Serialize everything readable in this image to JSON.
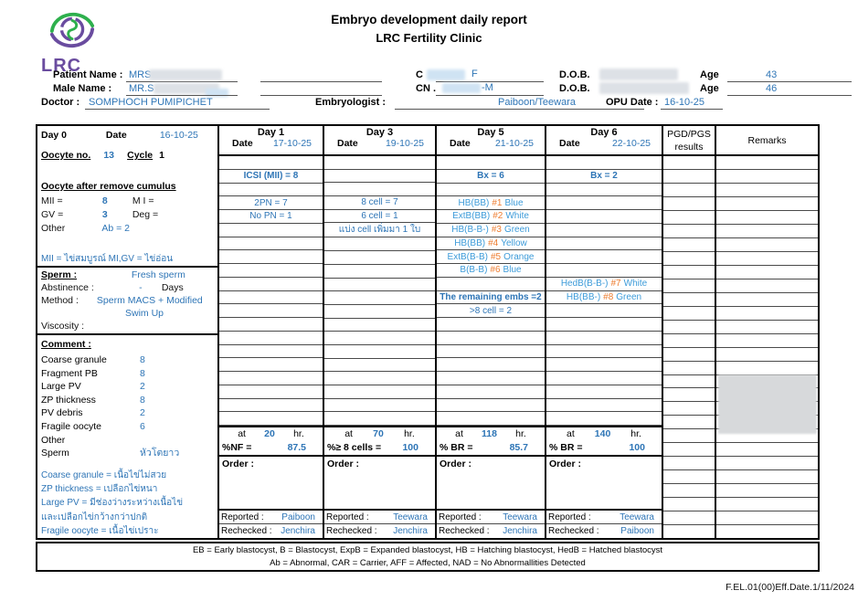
{
  "colors": {
    "data_blue": "#2e75b6",
    "grade_blue": "#3d9bd9",
    "tag_orange": "#ed7d31",
    "logo_purple": "#6a4c9f",
    "logo_green": "#2eb04d"
  },
  "page": {
    "title1": "Embryo development daily report",
    "title2": "LRC Fertility Clinic",
    "logo_text": "LRC",
    "footer_code": "F.EL.01(00)Eff.Date.1/11/2024"
  },
  "header_fields": {
    "patient_name_label": "Patient Name :",
    "patient_name_value": "MRS",
    "male_name_label": "Male Name :",
    "male_name_value": "MR.S",
    "doctor_label": "Doctor :",
    "doctor_value": "SOMPHOCH PUMIPICHET",
    "embryologist_label": "Embryologist :",
    "embryologist_value": "Paiboon/Teewara",
    "cn1_label": "C",
    "cn1_value": "F",
    "cn2_label": "CN .",
    "cn2_value": "-M",
    "dob_label": "D.O.B.",
    "age_label": "Age",
    "age1_value": "43",
    "age2_value": "46",
    "opu_label": "OPU Date :",
    "opu_value": "16-10-25"
  },
  "day0": {
    "section_a": {
      "day_label": "Day 0",
      "date_label": "Date",
      "date_value": "16-10-25",
      "oocyte_no_label": "Oocyte no.",
      "oocyte_no_value": "13",
      "cycle_label": "Cycle",
      "cycle_value": "1",
      "heading": "Oocyte after remove cumulus",
      "mii_label": "MII =",
      "mii_value": "8",
      "mi_label": "M I =",
      "gv_label": "GV =",
      "gv_value": "3",
      "deg_label": "Deg =",
      "other_label": "Other",
      "ab_value": "Ab = 2",
      "note": "MII = ไข่สมบูรณ์ MI,GV = ไข่อ่อน"
    },
    "section_b": {
      "sperm_label": "Sperm :",
      "sperm_value": "Fresh sperm",
      "abstinence_label": "Abstinence :",
      "abstinence_value": "-",
      "days_label": "Days",
      "method_label": "Method :",
      "method_value": "Sperm MACS + Modified",
      "method_value2": "Swim Up",
      "viscosity_label": "Viscosity :"
    },
    "section_c": {
      "heading": "Comment :",
      "items": [
        {
          "label": "Coarse granule",
          "value": "8"
        },
        {
          "label": "Fragment PB",
          "value": "8"
        },
        {
          "label": "Large PV",
          "value": "2"
        },
        {
          "label": "ZP thickness",
          "value": "8"
        },
        {
          "label": "PV debris",
          "value": "2"
        },
        {
          "label": "Fragile oocyte",
          "value": "6"
        },
        {
          "label": "Other",
          "value": ""
        },
        {
          "label": "Sperm",
          "value": "หัวโตยาว"
        }
      ],
      "notes": [
        "Coarse granule  = เนื้อไข่ไม่สวย",
        "ZP thickness = เปลือกไข่หนา",
        "Large PV = มีช่องว่างระหว่างเนื้อไข่",
        "และเปลือกไข่กว้างกว่าปกติ",
        "Fragile oocyte = เนื้อไข่เปราะ"
      ]
    }
  },
  "table_labels": {
    "date": "Date",
    "at": "at",
    "hr": "hr.",
    "order": "Order :",
    "reported": "Reported :",
    "rechecked": "Rechecked :"
  },
  "pgd_header_line1": "PGD/PGS",
  "pgd_header_line2": "results",
  "remarks_header": "Remarks",
  "day_columns": [
    {
      "name": "Day 1",
      "date": "17-10-25",
      "rows": {
        "2": {
          "style": "b",
          "text": "ICSI (MII) = 8"
        },
        "4": {
          "style": "n",
          "text": "2PN = 7"
        },
        "5": {
          "style": "n",
          "text": "No PN = 1"
        }
      },
      "at_hours": "20",
      "pct_label": "%NF =",
      "pct_value": "87.5",
      "reported": "Paiboon",
      "rechecked": "Jenchira"
    },
    {
      "name": "Day 3",
      "date": "19-10-25",
      "rows": {
        "4": {
          "style": "n",
          "text": "8 cell = 7"
        },
        "5": {
          "style": "n",
          "text": "6 cell = 1"
        },
        "6": {
          "style": "n",
          "text": "แบ่ง cell เพิ่มมา 1 ใบ"
        }
      },
      "at_hours": "70",
      "pct_label": "%≥ 8 cells =",
      "pct_value": "100",
      "reported": "Teewara",
      "rechecked": "Jenchira"
    },
    {
      "name": "Day 5",
      "date": "21-10-25",
      "rows": {
        "2": {
          "style": "b",
          "text": "Bx = 6"
        },
        "4": {
          "style": "grade",
          "pre": "HB(BB)",
          "tag": "#1",
          "post": "Blue"
        },
        "5": {
          "style": "grade",
          "pre": "ExtB(BB)",
          "tag": "#2",
          "post": "White"
        },
        "6": {
          "style": "grade",
          "pre": "HB(B-B-)",
          "tag": "#3",
          "post": "Green"
        },
        "7": {
          "style": "grade",
          "pre": "HB(BB)",
          "tag": "#4",
          "post": "Yellow"
        },
        "8": {
          "style": "grade",
          "pre": "ExtB(B-B)",
          "tag": "#5",
          "post": "Orange"
        },
        "9": {
          "style": "grade",
          "pre": "B(B-B)",
          "tag": "#6",
          "post": "Blue"
        },
        "11": {
          "style": "b",
          "text": "The remaining embs =2"
        },
        "12": {
          "style": "n",
          "text": ">8 cell = 2"
        }
      },
      "at_hours": "118",
      "pct_label": "% BR =",
      "pct_value": "85.7",
      "reported": "Teewara",
      "rechecked": "Jenchira"
    },
    {
      "name": "Day 6",
      "date": "22-10-25",
      "rows": {
        "2": {
          "style": "b",
          "text": "Bx = 2"
        },
        "10": {
          "style": "grade",
          "pre": "HedB(B-B-)",
          "tag": "#7",
          "post": "White"
        },
        "11": {
          "style": "grade",
          "pre": "HB(BB-)",
          "tag": "#8",
          "post": "Green"
        }
      },
      "at_hours": "140",
      "pct_label": "% BR =",
      "pct_value": "100",
      "reported": "Teewara",
      "rechecked": "Paiboon"
    }
  ],
  "legend": {
    "line1": "EB = Early blastocyst, B =  Blastocyst, ExpB = Expanded  blastocyst, HB = Hatching blastocyst, HedB = Hatched blastocyst",
    "line2": "Ab = Abnormal, CAR = Carrier, AFF = Affected, NAD = No Abnormallities Detected"
  }
}
